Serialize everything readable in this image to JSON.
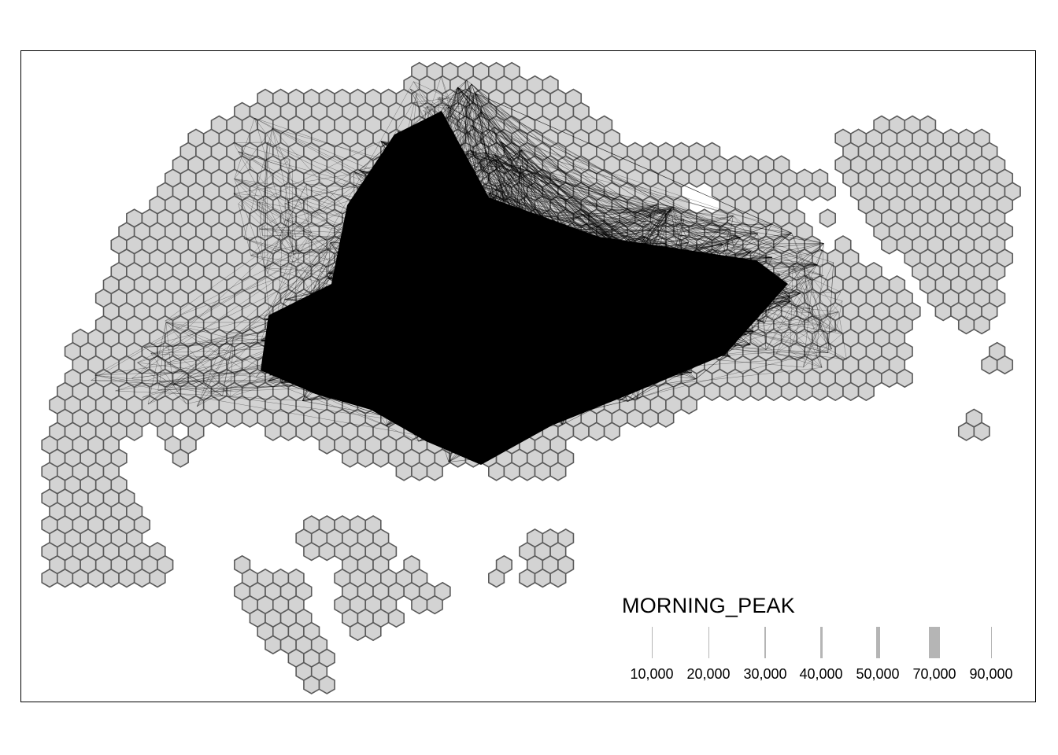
{
  "legend": {
    "title": "MORNING_PEAK",
    "items": [
      {
        "value": 10000,
        "label": "10,000"
      },
      {
        "value": 20000,
        "label": "20,000"
      },
      {
        "value": 30000,
        "label": "30,000"
      },
      {
        "value": 40000,
        "label": "40,000"
      },
      {
        "value": 50000,
        "label": "50,000"
      },
      {
        "value": 70000,
        "label": "70,000"
      },
      {
        "value": 90000,
        "label": "90,000"
      }
    ]
  },
  "colors": {
    "hex_fill": "#d3d3d3",
    "hex_stroke": "#5a5a5a",
    "flow_line": "#000000",
    "legend_line": "#b5b5b5",
    "background": "#ffffff"
  }
}
